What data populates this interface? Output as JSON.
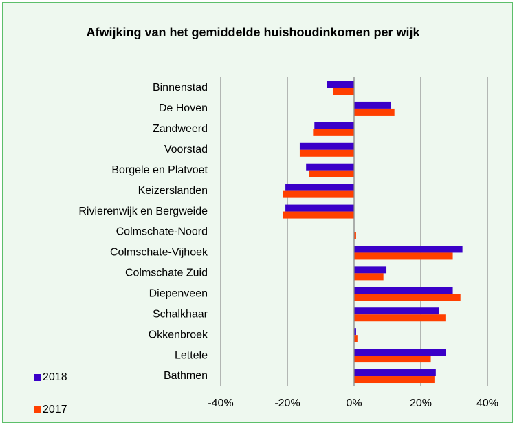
{
  "chart_data": {
    "type": "hbar",
    "title": "Afwijking van het gemiddelde huishoudinkomen per wijk",
    "categories": [
      "Binnenstad",
      "De Hoven",
      "Zandweerd",
      "Voorstad",
      "Borgele en Platvoet",
      "Keizerslanden",
      "Rivierenwijk en Bergweide",
      "Colmschate-Noord",
      "Colmschate-Vijhoek",
      "Colmschate Zuid",
      "Diepenveen",
      "Schalkhaar",
      "Okkenbroek",
      "Lettele",
      "Bathmen"
    ],
    "series": [
      {
        "name": "2018",
        "color": "#3a00c8",
        "values": [
          -8.2,
          11.1,
          -11.9,
          -16.3,
          -14.4,
          -20.6,
          -20.6,
          0,
          32.5,
          9.7,
          29.6,
          25.5,
          0.6,
          27.6,
          24.5
        ]
      },
      {
        "name": "2017",
        "color": "#ff4000",
        "values": [
          -6.2,
          12.1,
          -12.3,
          -16.3,
          -13.4,
          -21.4,
          -21.4,
          0.6,
          29.6,
          8.8,
          31.9,
          27.4,
          1.0,
          23.0,
          24.1
        ]
      }
    ],
    "xlim": [
      -40,
      40
    ],
    "xticks": [
      {
        "value": -40,
        "label": "-40%"
      },
      {
        "value": -20,
        "label": "-20%"
      },
      {
        "value": 0,
        "label": "0%"
      },
      {
        "value": 20,
        "label": "20%"
      },
      {
        "value": 40,
        "label": "40%"
      }
    ],
    "grid": true,
    "legend": "bottom-left"
  }
}
